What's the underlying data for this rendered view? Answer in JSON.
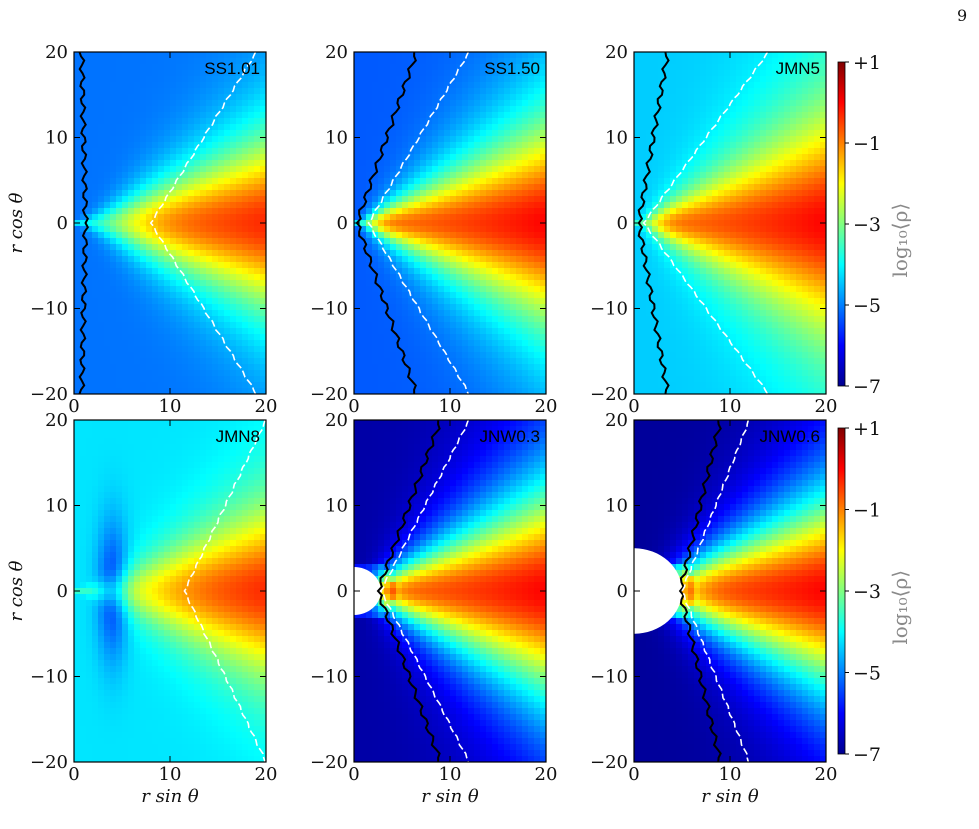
{
  "page_number": "9",
  "colormap": [
    "#00008f",
    "#0000ff",
    "#0080ff",
    "#00ffff",
    "#80ff80",
    "#ffff00",
    "#ff8000",
    "#ff0000",
    "#800000"
  ],
  "chart_data": [
    {
      "type": "heatmap",
      "title": "SS1.01",
      "xlim": [
        0,
        20
      ],
      "ylim": [
        -20,
        20
      ],
      "xticks": [
        "0",
        "10",
        "20"
      ],
      "yticks": [
        "20",
        "10",
        "0",
        "−10",
        "−20"
      ],
      "xlabel": "",
      "ylabel": "r cos θ",
      "colorbar_range": [
        -7,
        1
      ],
      "hole_radius": 0,
      "solid_contour_x": [
        1.2,
        0.8
      ],
      "dashed_contour_x": [
        8,
        19
      ]
    },
    {
      "type": "heatmap",
      "title": "SS1.50",
      "xlim": [
        0,
        20
      ],
      "ylim": [
        -20,
        20
      ],
      "xticks": [
        "0",
        "10",
        "20"
      ],
      "yticks": [
        "20",
        "10",
        "0",
        "−10",
        "−20"
      ],
      "xlabel": "",
      "ylabel": "",
      "colorbar_range": [
        -7,
        1
      ],
      "hole_radius": 0,
      "solid_contour_x": [
        0.3,
        6.5
      ],
      "dashed_contour_x": [
        1.5,
        12
      ]
    },
    {
      "type": "heatmap",
      "title": "JMN5",
      "xlim": [
        0,
        20
      ],
      "ylim": [
        -20,
        20
      ],
      "xticks": [
        "0",
        "10",
        "20"
      ],
      "yticks": [
        "20",
        "10",
        "0",
        "−10",
        "−20"
      ],
      "xlabel": "",
      "ylabel": "",
      "colorbar_range": [
        -7,
        1
      ],
      "hole_radius": 0,
      "solid_contour_x": [
        0.5,
        3.5
      ],
      "dashed_contour_x": [
        1,
        14
      ]
    },
    {
      "type": "heatmap",
      "title": "JMN8",
      "xlim": [
        0,
        20
      ],
      "ylim": [
        -20,
        20
      ],
      "xticks": [
        "0",
        "10",
        "20"
      ],
      "yticks": [
        "20",
        "10",
        "0",
        "−10",
        "−20"
      ],
      "xlabel": "r sin θ",
      "ylabel": "r cos θ",
      "colorbar_range": [
        -7,
        1
      ],
      "hole_radius": 0,
      "solid_contour_x": null,
      "dashed_contour_x": [
        11.5,
        20
      ]
    },
    {
      "type": "heatmap",
      "title": "JNW0.3",
      "xlim": [
        0,
        20
      ],
      "ylim": [
        -20,
        20
      ],
      "xticks": [
        "0",
        "10",
        "20"
      ],
      "yticks": [
        "20",
        "10",
        "0",
        "−10",
        "−20"
      ],
      "xlabel": "r sin θ",
      "ylabel": "",
      "colorbar_range": [
        -7,
        1
      ],
      "hole_radius": 2.8,
      "solid_contour_x": [
        2.5,
        9
      ],
      "dashed_contour_x": [
        2.8,
        12
      ]
    },
    {
      "type": "heatmap",
      "title": "JNW0.6",
      "xlim": [
        0,
        20
      ],
      "ylim": [
        -20,
        20
      ],
      "xticks": [
        "0",
        "10",
        "20"
      ],
      "yticks": [
        "20",
        "10",
        "0",
        "−10",
        "−20"
      ],
      "xlabel": "r sin θ",
      "ylabel": "",
      "colorbar_range": [
        -7,
        1
      ],
      "hole_radius": 5,
      "solid_contour_x": [
        4.8,
        9
      ],
      "dashed_contour_x": [
        5,
        12
      ]
    }
  ],
  "colorbar": {
    "ticks": [
      "+1",
      "−1",
      "−3",
      "−5",
      "−7"
    ],
    "label": "log₁₀⟨ρ⟩"
  }
}
